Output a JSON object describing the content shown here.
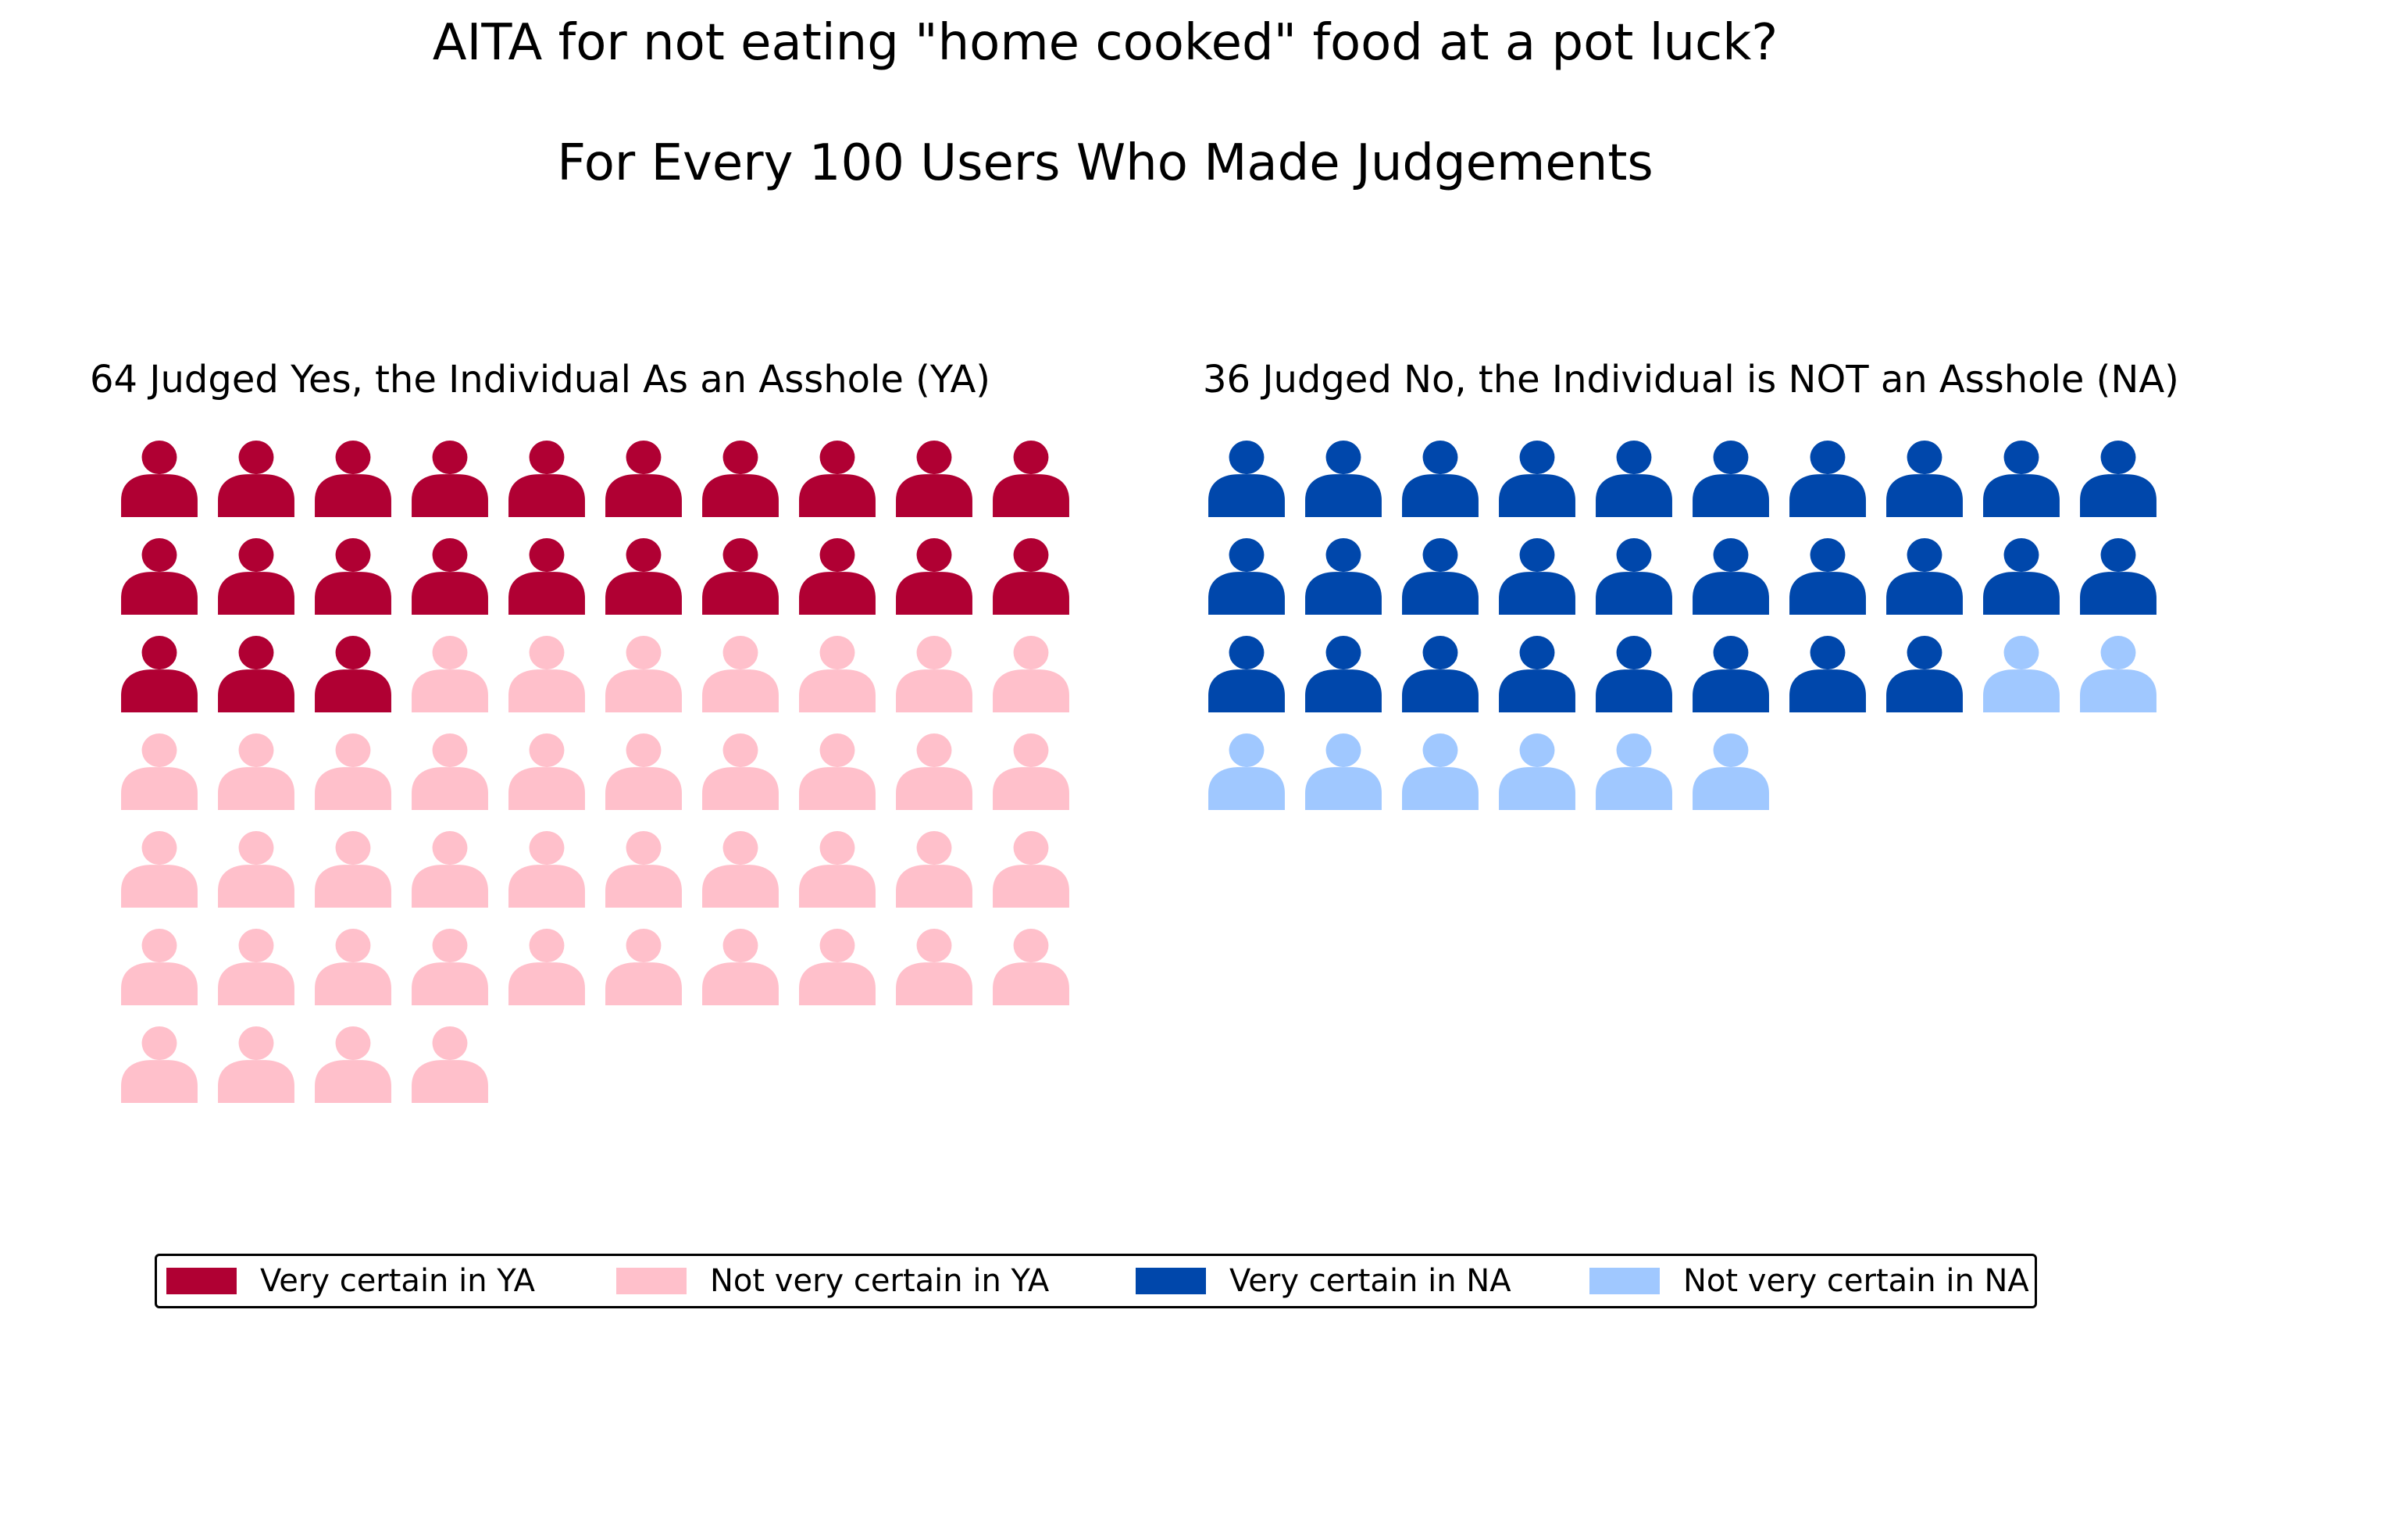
{
  "chart_data": {
    "type": "waffle",
    "title": "AITA for not eating \"home cooked\" food at a pot luck?",
    "subtitle": "For Every 100 Users Who Made Judgements",
    "panels": [
      {
        "title": "64 Judged Yes, the Individual As an Asshole (YA)",
        "total": 64,
        "groups": [
          {
            "name": "Very certain in YA",
            "count": 23,
            "color": "#B00033"
          },
          {
            "name": "Not very certain in YA",
            "count": 41,
            "color": "#FFC0CB"
          }
        ]
      },
      {
        "title": "36 Judged No, the Individual is NOT an Asshole (NA)",
        "total": 36,
        "groups": [
          {
            "name": "Very certain in NA",
            "count": 28,
            "color": "#0047AB"
          },
          {
            "name": "Not very certain in NA",
            "count": 8,
            "color": "#A0C8FF"
          }
        ]
      }
    ],
    "legend": {
      "position": "bottom",
      "entries": [
        {
          "label": "Very certain in YA",
          "color": "#B00033"
        },
        {
          "label": "Not very certain in YA",
          "color": "#FFC0CB"
        },
        {
          "label": "Very certain in NA",
          "color": "#0047AB"
        },
        {
          "label": "Not very certain in NA",
          "color": "#A0C8FF"
        }
      ]
    }
  }
}
